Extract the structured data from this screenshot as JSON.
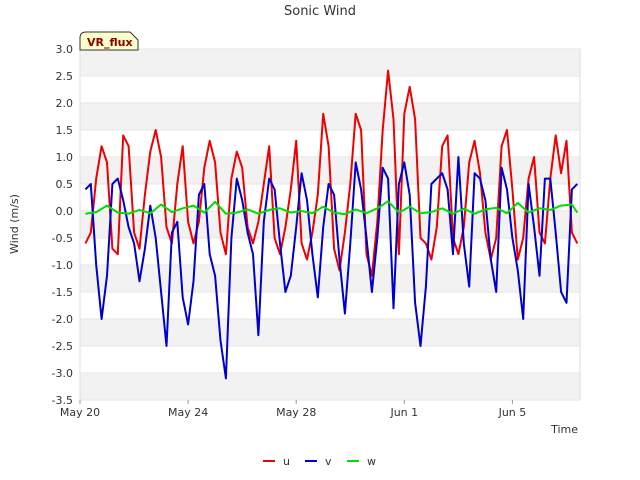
{
  "chart_data": {
    "type": "line",
    "title": "Sonic Wind",
    "xlabel": "Time",
    "ylabel": "Wind (m/s)",
    "badge": "VR_flux",
    "ylim": [
      -3.5,
      3.0
    ],
    "xlim_days": [
      0,
      18.5
    ],
    "yticks": [
      {
        "value": 3.0,
        "label": "3.0"
      },
      {
        "value": 2.5,
        "label": "2.5"
      },
      {
        "value": 2.0,
        "label": "2.0"
      },
      {
        "value": 1.5,
        "label": "1.5"
      },
      {
        "value": 1.0,
        "label": "1.0"
      },
      {
        "value": 0.5,
        "label": "0.5"
      },
      {
        "value": 0.0,
        "label": "0.0"
      },
      {
        "value": -0.5,
        "label": "-0.5"
      },
      {
        "value": -1.0,
        "label": "-1.0"
      },
      {
        "value": -1.5,
        "label": "-1.5"
      },
      {
        "value": -2.0,
        "label": "-2.0"
      },
      {
        "value": -2.5,
        "label": "-2.5"
      },
      {
        "value": -3.0,
        "label": "-3.0"
      },
      {
        "value": -3.5,
        "label": "-3.5"
      }
    ],
    "xticks": [
      {
        "day": 0,
        "label": "May 20"
      },
      {
        "day": 4,
        "label": "May 24"
      },
      {
        "day": 8,
        "label": "May 28"
      },
      {
        "day": 12,
        "label": "Jun 1"
      },
      {
        "day": 16,
        "label": "Jun 5"
      }
    ],
    "series": [
      {
        "name": "u",
        "color": "#ee0000",
        "x": [
          0.2,
          0.4,
          0.6,
          0.8,
          1.0,
          1.2,
          1.4,
          1.6,
          1.8,
          2.0,
          2.2,
          2.4,
          2.6,
          2.8,
          3.0,
          3.2,
          3.4,
          3.6,
          3.8,
          4.0,
          4.2,
          4.4,
          4.6,
          4.8,
          5.0,
          5.2,
          5.4,
          5.6,
          5.8,
          6.0,
          6.2,
          6.4,
          6.6,
          6.8,
          7.0,
          7.2,
          7.4,
          7.6,
          7.8,
          8.0,
          8.2,
          8.4,
          8.6,
          8.8,
          9.0,
          9.2,
          9.4,
          9.6,
          9.8,
          10.0,
          10.2,
          10.4,
          10.6,
          10.8,
          11.0,
          11.2,
          11.4,
          11.6,
          11.8,
          12.0,
          12.2,
          12.4,
          12.6,
          12.8,
          13.0,
          13.2,
          13.4,
          13.6,
          13.8,
          14.0,
          14.2,
          14.4,
          14.6,
          14.8,
          15.0,
          15.2,
          15.4,
          15.6,
          15.8,
          16.0,
          16.2,
          16.4,
          16.6,
          16.8,
          17.0,
          17.2,
          17.4,
          17.6,
          17.8,
          18.0,
          18.2,
          18.4
        ],
        "values": [
          -0.6,
          -0.4,
          0.6,
          1.2,
          0.9,
          -0.7,
          -0.8,
          1.4,
          1.2,
          -0.4,
          -0.7,
          0.3,
          1.1,
          1.5,
          1.0,
          -0.3,
          -0.6,
          0.5,
          1.2,
          -0.2,
          -0.6,
          -0.2,
          0.8,
          1.3,
          0.9,
          -0.4,
          -0.8,
          0.6,
          1.1,
          0.8,
          -0.3,
          -0.6,
          -0.2,
          0.5,
          1.2,
          -0.5,
          -0.8,
          -0.3,
          0.4,
          1.3,
          -0.6,
          -0.9,
          -0.4,
          0.3,
          1.8,
          1.2,
          -0.7,
          -1.1,
          -0.4,
          0.5,
          1.8,
          1.5,
          -0.8,
          -1.2,
          -0.2,
          1.5,
          2.6,
          1.7,
          -0.8,
          1.8,
          2.3,
          1.7,
          -0.5,
          -0.6,
          -0.9,
          -0.3,
          1.2,
          1.4,
          -0.5,
          -0.8,
          -0.3,
          0.9,
          1.3,
          0.7,
          -0.4,
          -0.9,
          -0.5,
          1.2,
          1.5,
          0.4,
          -0.9,
          -0.5,
          0.6,
          1.0,
          -0.4,
          -0.6,
          0.6,
          1.4,
          0.7,
          1.3,
          -0.4,
          -0.6
        ]
      },
      {
        "name": "v",
        "color": "#0000cc",
        "x": [
          0.2,
          0.4,
          0.6,
          0.8,
          1.0,
          1.2,
          1.4,
          1.6,
          1.8,
          2.0,
          2.2,
          2.4,
          2.6,
          2.8,
          3.0,
          3.2,
          3.4,
          3.6,
          3.8,
          4.0,
          4.2,
          4.4,
          4.6,
          4.8,
          5.0,
          5.2,
          5.4,
          5.6,
          5.8,
          6.0,
          6.2,
          6.4,
          6.6,
          6.8,
          7.0,
          7.2,
          7.4,
          7.6,
          7.8,
          8.0,
          8.2,
          8.4,
          8.6,
          8.8,
          9.0,
          9.2,
          9.4,
          9.6,
          9.8,
          10.0,
          10.2,
          10.4,
          10.6,
          10.8,
          11.0,
          11.2,
          11.4,
          11.6,
          11.8,
          12.0,
          12.2,
          12.4,
          12.6,
          12.8,
          13.0,
          13.2,
          13.4,
          13.6,
          13.8,
          14.0,
          14.2,
          14.4,
          14.6,
          14.8,
          15.0,
          15.2,
          15.4,
          15.6,
          15.8,
          16.0,
          16.2,
          16.4,
          16.6,
          16.8,
          17.0,
          17.2,
          17.4,
          17.6,
          17.8,
          18.0,
          18.2,
          18.4
        ],
        "values": [
          0.4,
          0.5,
          -1.0,
          -2.0,
          -1.2,
          0.5,
          0.6,
          0.2,
          -0.3,
          -0.6,
          -1.3,
          -0.7,
          0.1,
          -0.5,
          -1.5,
          -2.5,
          -0.4,
          -0.2,
          -1.6,
          -2.1,
          -1.3,
          0.3,
          0.5,
          -0.8,
          -1.2,
          -2.4,
          -3.1,
          -0.5,
          0.6,
          0.2,
          -0.4,
          -0.8,
          -2.3,
          -0.2,
          0.6,
          0.4,
          -0.6,
          -1.5,
          -1.2,
          -0.3,
          0.7,
          0.2,
          -0.8,
          -1.6,
          -0.3,
          0.5,
          0.3,
          -0.9,
          -1.9,
          -0.6,
          0.9,
          0.4,
          -0.5,
          -1.5,
          -0.5,
          0.8,
          0.6,
          -1.8,
          0.5,
          0.9,
          0.3,
          -1.7,
          -2.5,
          -1.4,
          0.5,
          0.6,
          0.7,
          0.4,
          -0.8,
          1.0,
          -0.6,
          -1.4,
          0.7,
          0.6,
          0.2,
          -0.9,
          -1.5,
          0.8,
          0.4,
          -0.5,
          -1.1,
          -2.0,
          0.5,
          -0.3,
          -1.2,
          0.6,
          0.6,
          -0.4,
          -1.5,
          -1.7,
          0.4,
          0.5
        ]
      },
      {
        "name": "w",
        "color": "#00dd00",
        "x": [
          0.2,
          0.6,
          1.0,
          1.4,
          1.8,
          2.2,
          2.6,
          3.0,
          3.4,
          3.8,
          4.2,
          4.6,
          5.0,
          5.4,
          5.8,
          6.2,
          6.6,
          7.0,
          7.4,
          7.8,
          8.2,
          8.6,
          9.0,
          9.4,
          9.8,
          10.2,
          10.6,
          11.0,
          11.4,
          11.8,
          12.2,
          12.6,
          13.0,
          13.4,
          13.8,
          14.2,
          14.6,
          15.0,
          15.4,
          15.8,
          16.2,
          16.6,
          17.0,
          17.4,
          17.8,
          18.2,
          18.4
        ],
        "values": [
          -0.05,
          -0.02,
          0.1,
          -0.03,
          -0.05,
          0.02,
          -0.04,
          0.12,
          -0.02,
          0.05,
          0.1,
          -0.03,
          0.17,
          -0.05,
          -0.03,
          0.03,
          -0.05,
          0.02,
          0.05,
          -0.03,
          0.0,
          -0.04,
          0.08,
          -0.03,
          -0.06,
          0.03,
          -0.04,
          0.05,
          0.18,
          -0.03,
          0.08,
          -0.04,
          -0.02,
          0.05,
          -0.05,
          0.04,
          -0.05,
          0.03,
          0.06,
          -0.04,
          0.15,
          -0.03,
          0.05,
          0.02,
          0.1,
          0.12,
          -0.03
        ]
      }
    ]
  }
}
